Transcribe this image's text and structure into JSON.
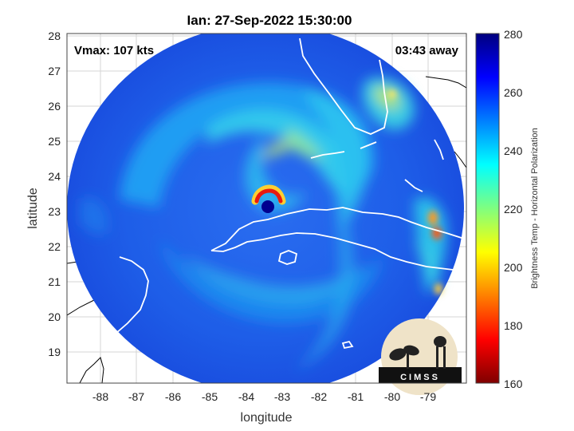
{
  "title": "Ian: 27-Sep-2022 15:30:00",
  "annotations": {
    "vmax": "Vmax: 107 kts",
    "time_away": "03:43 away"
  },
  "axes": {
    "xlabel": "longitude",
    "ylabel": "latitude",
    "xticks": [
      "-88",
      "-87",
      "-86",
      "-85",
      "-84",
      "-83",
      "-82",
      "-81",
      "-80",
      "-79"
    ],
    "yticks": [
      "28",
      "27",
      "26",
      "25",
      "24",
      "23",
      "22",
      "21",
      "20",
      "19"
    ],
    "xlim": [
      -88.95,
      -77.9
    ],
    "ylim": [
      18.2,
      28.2
    ],
    "grid": true
  },
  "colorbar": {
    "label": "Brightness Temp - Horizontal Polarization",
    "ticks": [
      "280",
      "260",
      "240",
      "220",
      "200",
      "180",
      "160"
    ],
    "range": [
      160,
      280
    ],
    "colormap": "jet"
  },
  "storm_center": {
    "lon": -83.5,
    "lat": 23.1
  },
  "logo": {
    "text": "CIMSS"
  }
}
